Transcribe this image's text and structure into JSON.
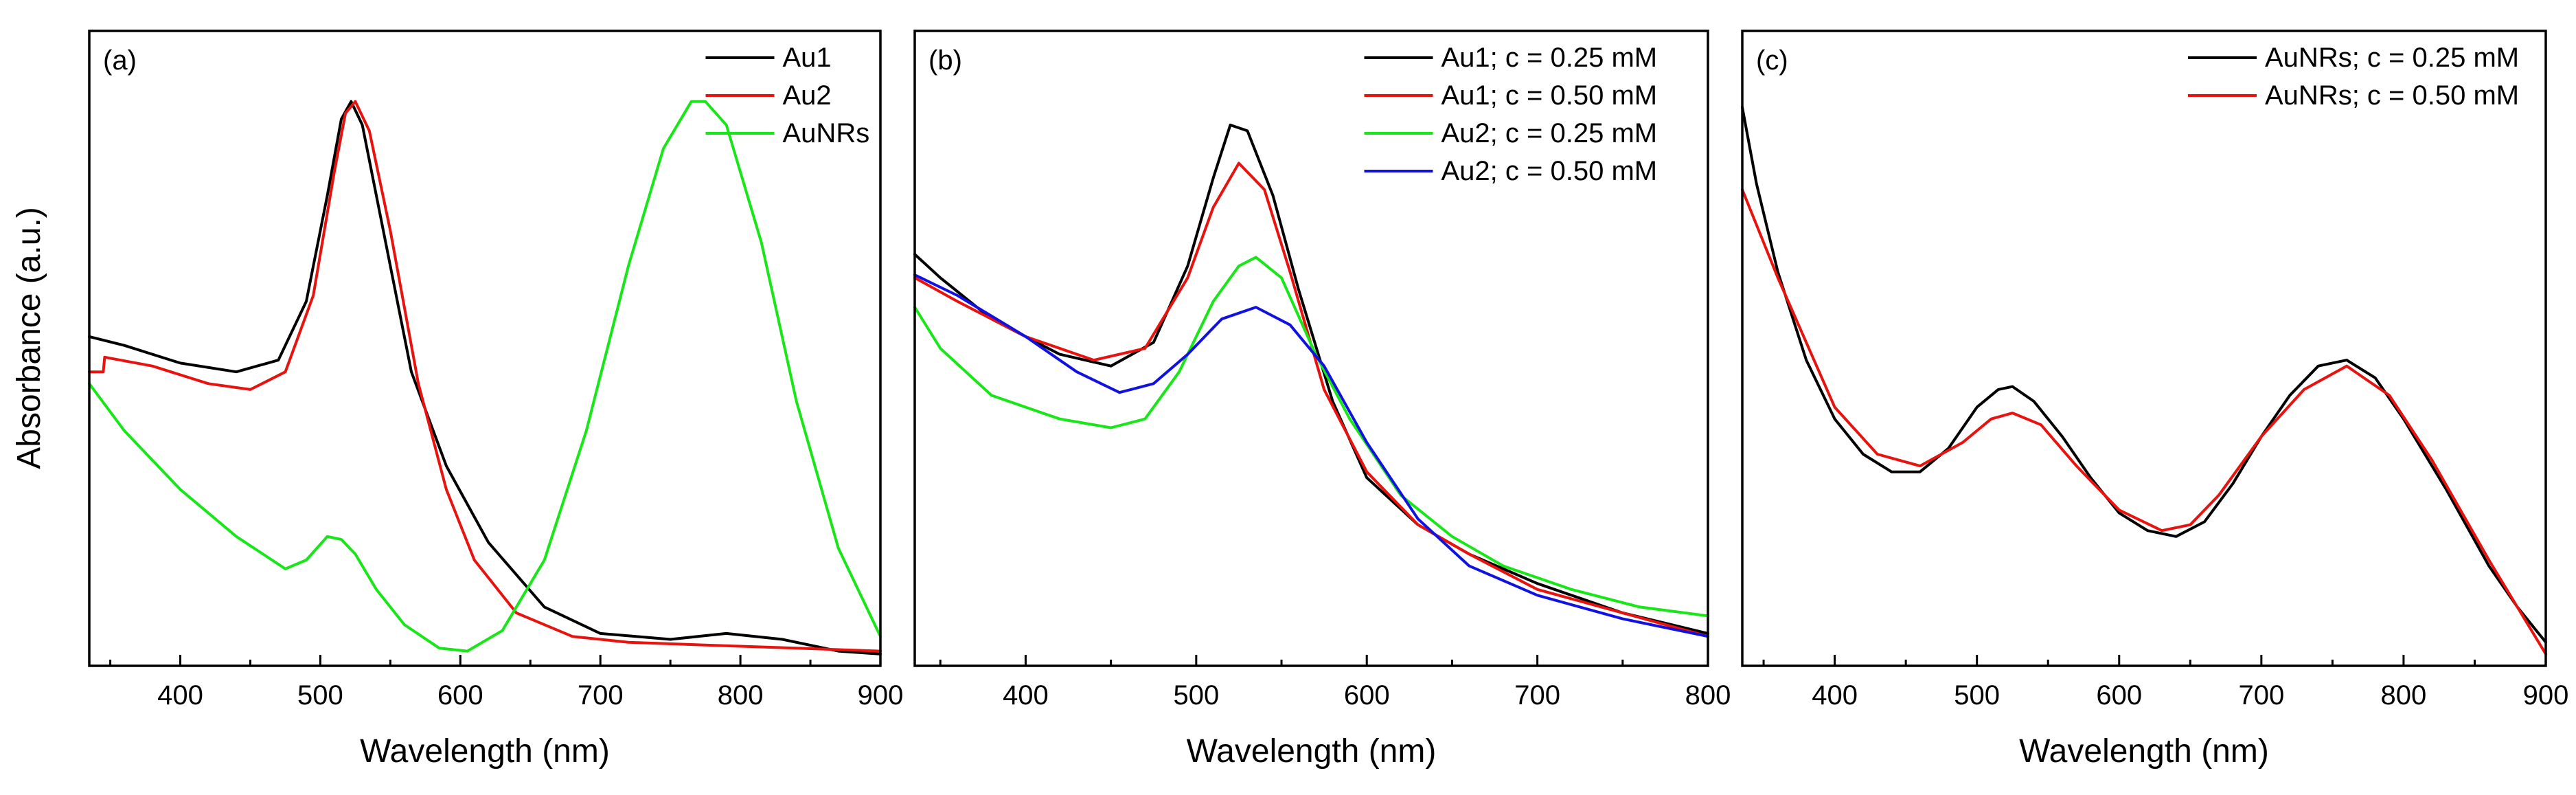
{
  "figure": {
    "ylabel": "Absorbance (a.u.)"
  },
  "chart_data": [
    {
      "type": "line",
      "panel": "(a)",
      "xlabel": "Wavelength (nm)",
      "ylabel": "Absorbance (a.u.)",
      "xlim": [
        335,
        900
      ],
      "ylim": [
        0,
        1.08
      ],
      "xticks": [
        400,
        500,
        600,
        700,
        800,
        900
      ],
      "legend_position": "top-right",
      "series": [
        {
          "name": "Au1",
          "color": "#000000",
          "x": [
            335,
            360,
            400,
            440,
            470,
            490,
            505,
            515,
            522,
            530,
            545,
            565,
            590,
            620,
            660,
            700,
            750,
            790,
            830,
            870,
            900
          ],
          "y": [
            0.56,
            0.545,
            0.515,
            0.5,
            0.52,
            0.62,
            0.8,
            0.93,
            0.96,
            0.92,
            0.74,
            0.5,
            0.34,
            0.21,
            0.1,
            0.055,
            0.045,
            0.055,
            0.045,
            0.025,
            0.02
          ]
        },
        {
          "name": "Au2",
          "color": "#e8120e",
          "x": [
            335,
            345,
            346,
            380,
            420,
            450,
            475,
            495,
            510,
            518,
            525,
            535,
            550,
            570,
            590,
            610,
            640,
            680,
            720,
            780,
            840,
            900
          ],
          "y": [
            0.5,
            0.5,
            0.525,
            0.51,
            0.48,
            0.47,
            0.5,
            0.63,
            0.84,
            0.94,
            0.96,
            0.91,
            0.74,
            0.48,
            0.3,
            0.18,
            0.09,
            0.05,
            0.04,
            0.035,
            0.03,
            0.025
          ]
        },
        {
          "name": "AuNRs",
          "color": "#17e617",
          "x": [
            335,
            360,
            400,
            440,
            475,
            490,
            505,
            515,
            525,
            540,
            560,
            585,
            605,
            630,
            660,
            690,
            720,
            745,
            765,
            775,
            790,
            815,
            840,
            870,
            900
          ],
          "y": [
            0.48,
            0.4,
            0.3,
            0.22,
            0.165,
            0.18,
            0.22,
            0.215,
            0.19,
            0.13,
            0.07,
            0.03,
            0.025,
            0.06,
            0.18,
            0.4,
            0.68,
            0.88,
            0.96,
            0.96,
            0.92,
            0.72,
            0.45,
            0.2,
            0.05
          ]
        }
      ]
    },
    {
      "type": "line",
      "panel": "(b)",
      "xlabel": "Wavelength (nm)",
      "ylabel": "Absorbance (a.u.)",
      "xlim": [
        335,
        800
      ],
      "ylim": [
        0,
        1.08
      ],
      "xticks": [
        400,
        500,
        600,
        700,
        800
      ],
      "legend_position": "top-right",
      "series": [
        {
          "name": "Au1;  c = 0.25 mM",
          "color": "#000000",
          "x": [
            335,
            350,
            380,
            420,
            450,
            475,
            495,
            510,
            520,
            530,
            545,
            560,
            580,
            600,
            630,
            660,
            700,
            750,
            800
          ],
          "y": [
            0.7,
            0.66,
            0.59,
            0.53,
            0.51,
            0.55,
            0.68,
            0.83,
            0.92,
            0.91,
            0.8,
            0.64,
            0.45,
            0.32,
            0.24,
            0.19,
            0.14,
            0.09,
            0.055
          ]
        },
        {
          "name": "Au1;  c = 0.50 mM",
          "color": "#e8120e",
          "x": [
            335,
            360,
            400,
            440,
            470,
            495,
            510,
            525,
            540,
            555,
            575,
            600,
            630,
            660,
            700,
            750,
            800
          ],
          "y": [
            0.66,
            0.62,
            0.56,
            0.52,
            0.54,
            0.66,
            0.78,
            0.855,
            0.81,
            0.67,
            0.47,
            0.33,
            0.24,
            0.19,
            0.13,
            0.09,
            0.05
          ]
        },
        {
          "name": "Au2;  c = 0.25 mM",
          "color": "#17e617",
          "x": [
            335,
            350,
            380,
            420,
            450,
            470,
            490,
            510,
            525,
            535,
            550,
            570,
            590,
            620,
            650,
            680,
            720,
            760,
            800
          ],
          "y": [
            0.61,
            0.54,
            0.46,
            0.42,
            0.405,
            0.42,
            0.5,
            0.62,
            0.68,
            0.695,
            0.66,
            0.53,
            0.42,
            0.29,
            0.22,
            0.17,
            0.13,
            0.1,
            0.085
          ]
        },
        {
          "name": "Au2;  c = 0.50 mM",
          "color": "#1111e0",
          "x": [
            335,
            360,
            400,
            430,
            455,
            475,
            495,
            515,
            535,
            555,
            575,
            600,
            630,
            660,
            700,
            750,
            800
          ],
          "y": [
            0.665,
            0.63,
            0.56,
            0.5,
            0.465,
            0.48,
            0.53,
            0.59,
            0.61,
            0.58,
            0.51,
            0.38,
            0.25,
            0.17,
            0.12,
            0.08,
            0.05
          ]
        }
      ]
    },
    {
      "type": "line",
      "panel": "(c)",
      "xlabel": "Wavelength (nm)",
      "ylabel": "Absorbance (a.u.)",
      "xlim": [
        335,
        900
      ],
      "ylim": [
        0,
        1.08
      ],
      "xticks": [
        400,
        500,
        600,
        700,
        800,
        900
      ],
      "legend_position": "top-right",
      "series": [
        {
          "name": "AuNRs; c = 0.25 mM",
          "color": "#000000",
          "x": [
            335,
            345,
            360,
            380,
            400,
            420,
            440,
            460,
            480,
            500,
            515,
            525,
            540,
            560,
            580,
            600,
            620,
            640,
            660,
            680,
            700,
            720,
            740,
            760,
            780,
            800,
            830,
            860,
            880,
            900
          ],
          "y": [
            0.95,
            0.82,
            0.67,
            0.52,
            0.42,
            0.36,
            0.33,
            0.33,
            0.37,
            0.44,
            0.47,
            0.475,
            0.45,
            0.39,
            0.32,
            0.26,
            0.23,
            0.22,
            0.245,
            0.31,
            0.39,
            0.46,
            0.51,
            0.52,
            0.49,
            0.42,
            0.3,
            0.17,
            0.1,
            0.04
          ]
        },
        {
          "name": "AuNRs; c = 0.50 mM",
          "color": "#e8120e",
          "x": [
            335,
            360,
            400,
            430,
            460,
            490,
            510,
            525,
            545,
            570,
            600,
            630,
            650,
            670,
            700,
            730,
            760,
            790,
            820,
            860,
            900
          ],
          "y": [
            0.81,
            0.66,
            0.44,
            0.36,
            0.34,
            0.38,
            0.42,
            0.43,
            0.41,
            0.34,
            0.265,
            0.23,
            0.24,
            0.29,
            0.39,
            0.47,
            0.51,
            0.46,
            0.35,
            0.18,
            0.02
          ]
        }
      ]
    }
  ]
}
